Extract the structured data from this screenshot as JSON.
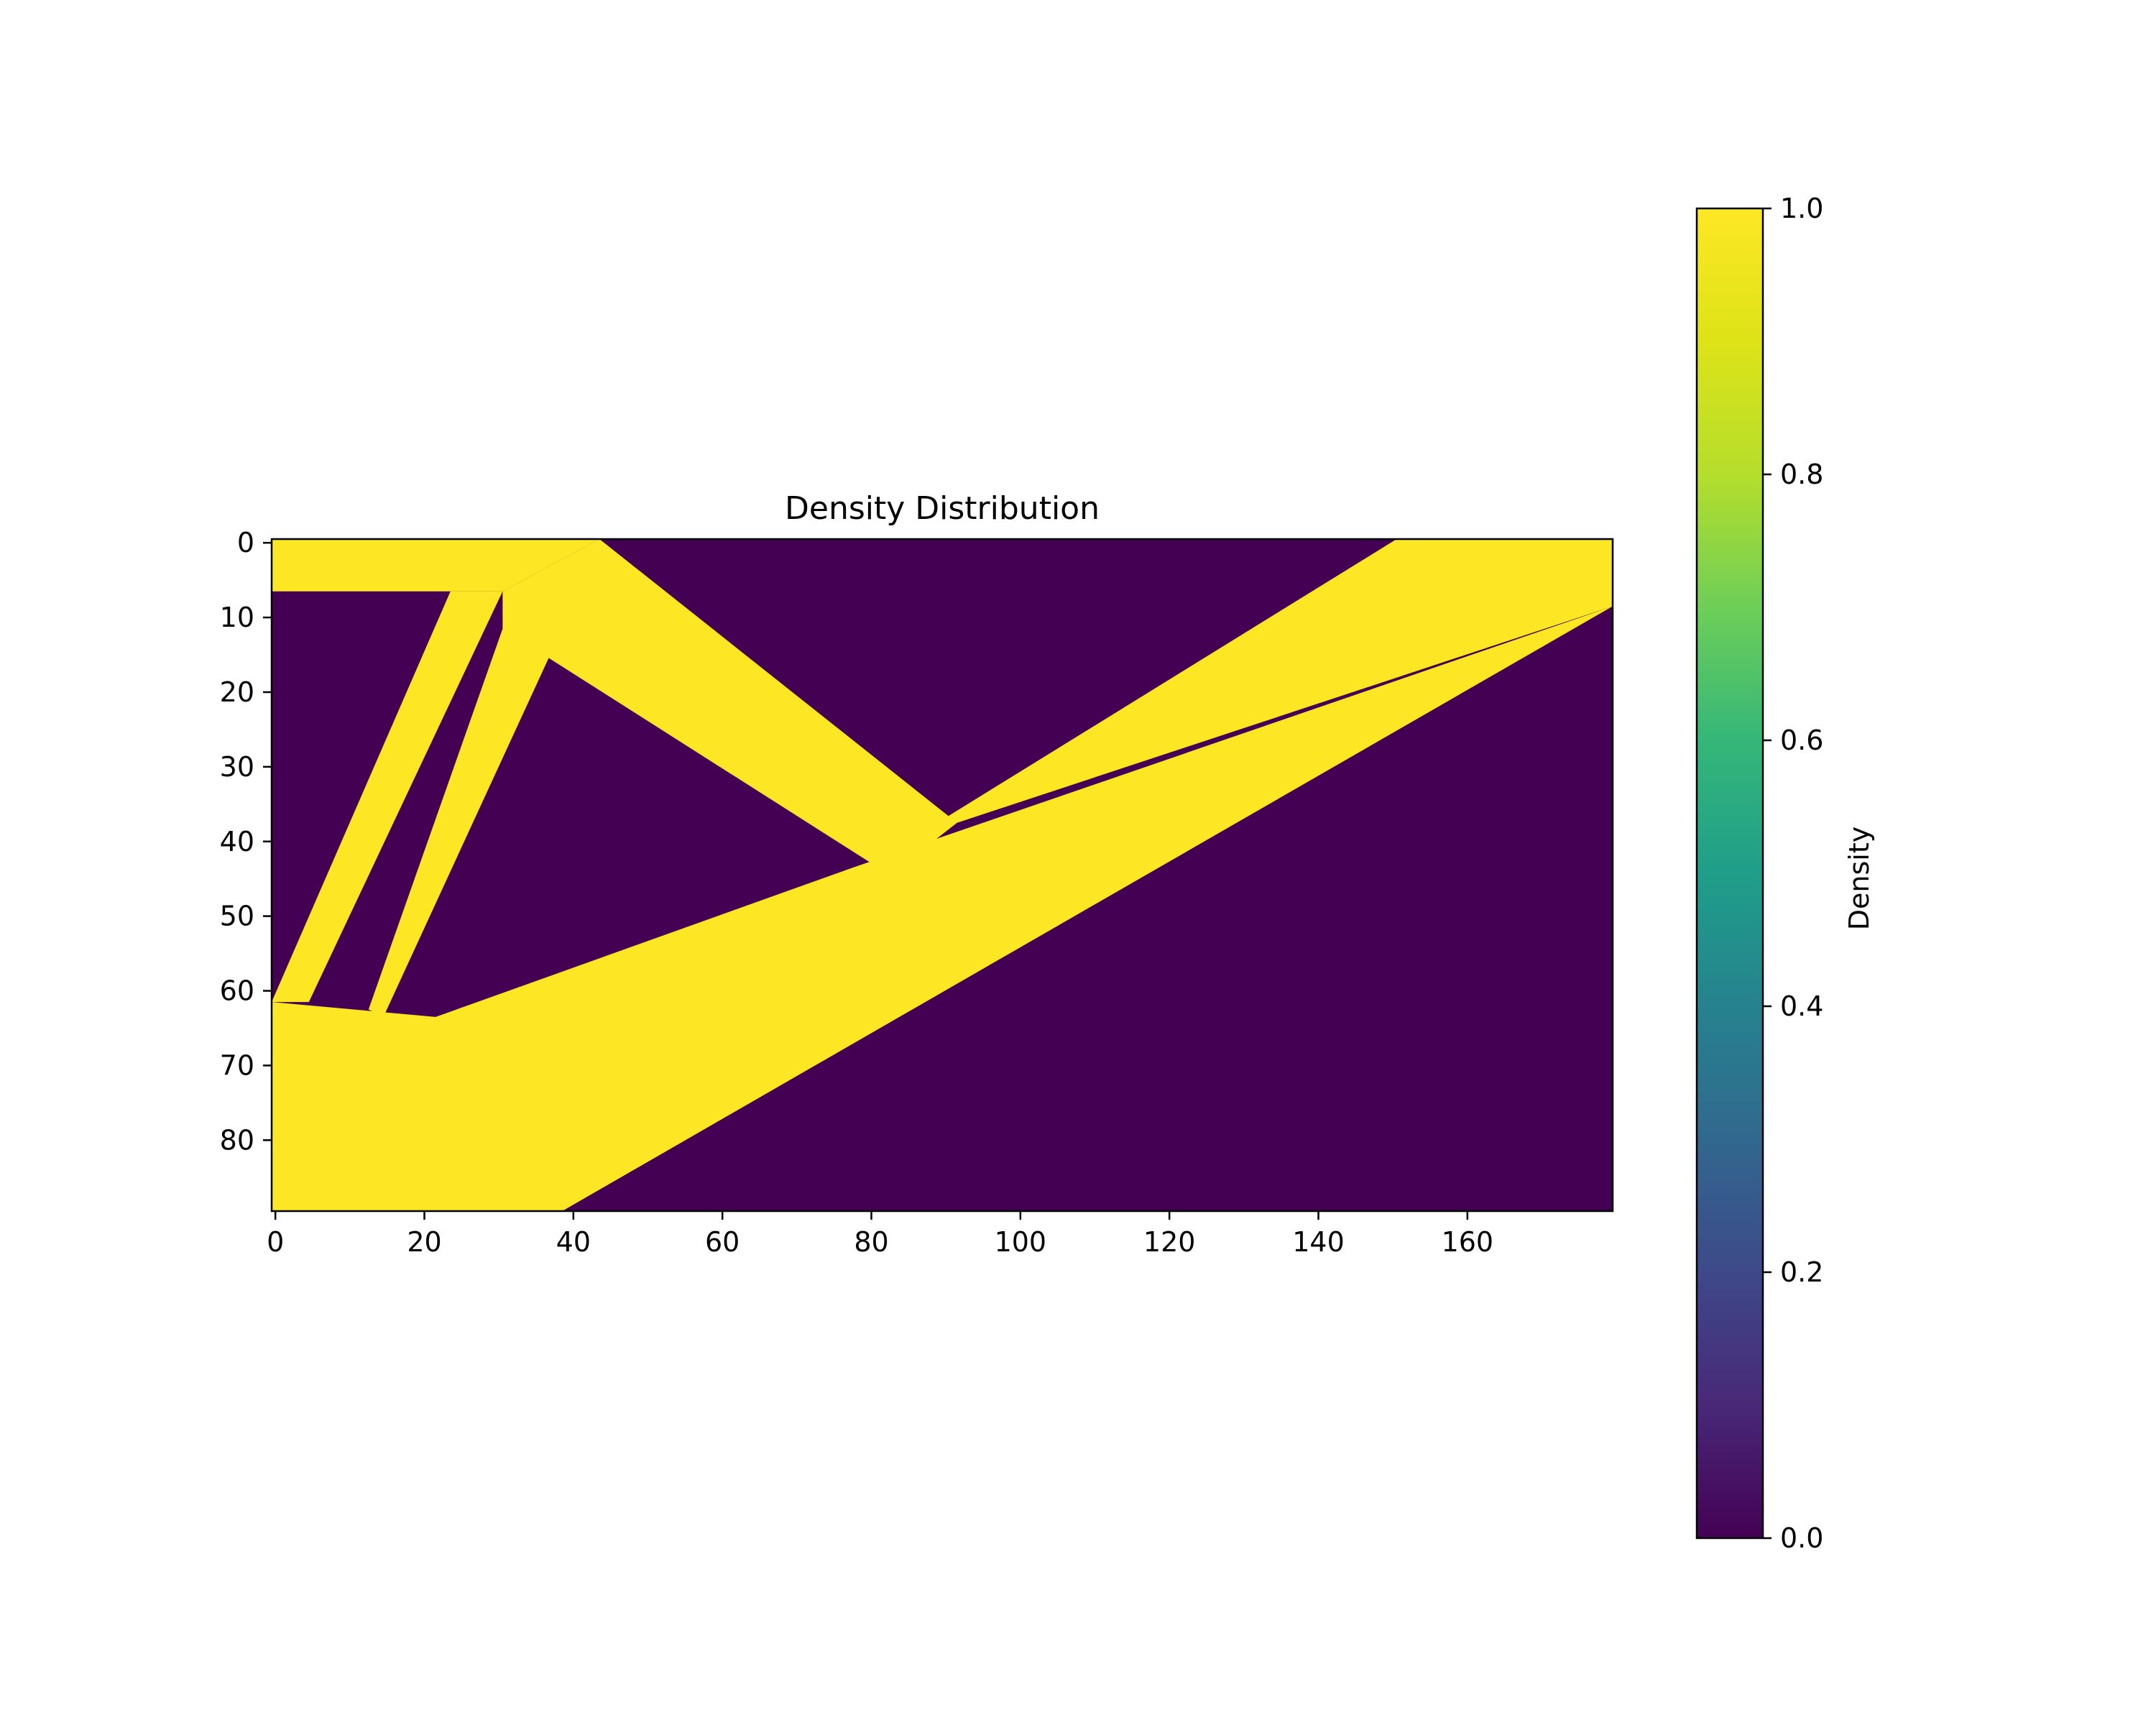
{
  "chart_data": {
    "type": "heatmap",
    "title": "Density Distribution",
    "xlabel": "",
    "ylabel": "",
    "grid_shape": [
      90,
      180
    ],
    "x_ticks": [
      0,
      20,
      40,
      60,
      80,
      100,
      120,
      140,
      160
    ],
    "y_ticks": [
      0,
      10,
      20,
      30,
      40,
      50,
      60,
      70,
      80
    ],
    "xlim": [
      -0.5,
      179.5
    ],
    "ylim": [
      89.5,
      -0.5
    ],
    "colormap": "viridis",
    "colors": {
      "low": "#440154",
      "high": "#fde725"
    },
    "value_range": [
      0.0,
      1.0
    ],
    "colorbar": {
      "label": "Density",
      "ticks": [
        "0.0",
        "0.2",
        "0.4",
        "0.6",
        "0.8",
        "1.0"
      ],
      "placement": "right"
    },
    "solid_regions": [
      {
        "name": "top-left-plate",
        "polygon": [
          [
            0,
            0
          ],
          [
            44,
            0
          ],
          [
            31,
            7
          ],
          [
            0,
            7
          ]
        ]
      },
      {
        "name": "left-vertical-strut",
        "polygon": [
          [
            31,
            7
          ],
          [
            24,
            7
          ],
          [
            0,
            62
          ],
          [
            5,
            62
          ]
        ]
      },
      {
        "name": "upper-diagonal-member",
        "polygon": [
          [
            44,
            0
          ],
          [
            31,
            7
          ],
          [
            31,
            12
          ],
          [
            83,
            45
          ],
          [
            92,
            38
          ]
        ]
      },
      {
        "name": "right-top-chord",
        "polygon": [
          [
            151,
            0
          ],
          [
            180,
            0
          ],
          [
            180,
            9
          ],
          [
            92,
            38
          ],
          [
            78,
            45
          ]
        ]
      },
      {
        "name": "inner-left-strut",
        "polygon": [
          [
            31,
            12
          ],
          [
            39,
            12
          ],
          [
            15,
            64
          ],
          [
            13,
            63
          ]
        ]
      },
      {
        "name": "bottom-left-block",
        "polygon": [
          [
            0,
            62
          ],
          [
            22,
            64
          ],
          [
            78,
            44
          ],
          [
            180,
            9
          ],
          [
            39,
            90
          ],
          [
            0,
            90
          ]
        ]
      }
    ]
  }
}
